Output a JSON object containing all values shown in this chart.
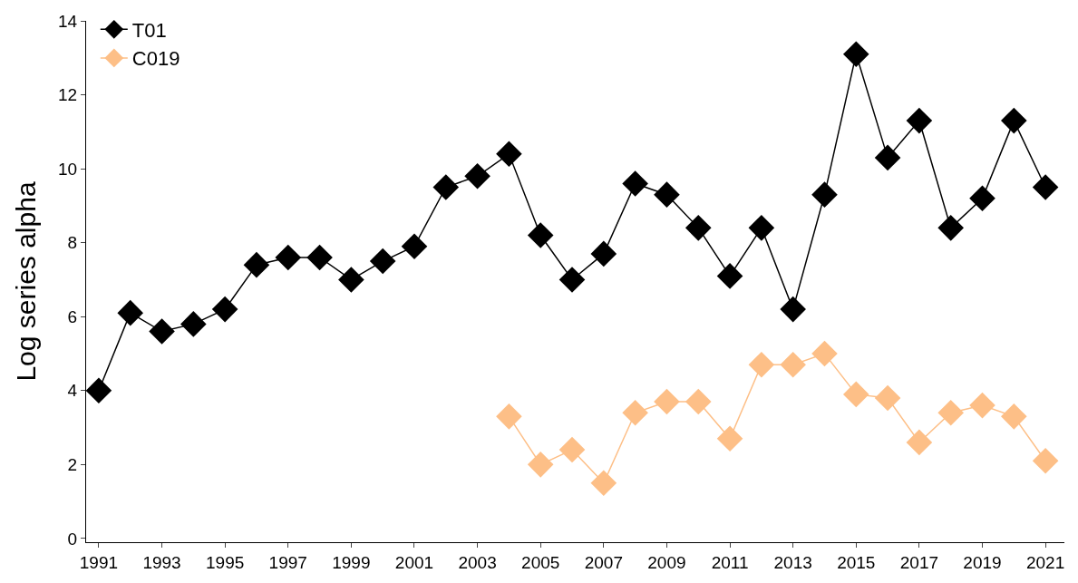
{
  "chart_data": {
    "type": "line",
    "ylabel": "Log series alpha",
    "x": [
      1991,
      1992,
      1993,
      1994,
      1995,
      1996,
      1997,
      1998,
      1999,
      2000,
      2001,
      2002,
      2003,
      2004,
      2005,
      2006,
      2007,
      2008,
      2009,
      2010,
      2011,
      2012,
      2013,
      2014,
      2015,
      2016,
      2017,
      2018,
      2019,
      2020,
      2021
    ],
    "series": [
      {
        "name": "T01",
        "color": "#000000",
        "values": [
          4.0,
          6.1,
          5.6,
          5.8,
          6.2,
          7.4,
          7.6,
          7.6,
          7.0,
          7.5,
          7.9,
          9.5,
          9.8,
          10.4,
          8.2,
          7.0,
          7.7,
          9.6,
          9.3,
          8.4,
          7.1,
          8.4,
          6.2,
          9.3,
          13.1,
          10.3,
          11.3,
          8.4,
          9.2,
          11.3,
          9.5
        ]
      },
      {
        "name": "C019",
        "color": "#fdbf87",
        "x": [
          2004,
          2005,
          2006,
          2007,
          2008,
          2009,
          2010,
          2011,
          2012,
          2013,
          2014,
          2015,
          2016,
          2017,
          2018,
          2019,
          2020,
          2021
        ],
        "values": [
          3.3,
          2.0,
          2.4,
          1.5,
          3.4,
          3.7,
          3.7,
          2.7,
          4.7,
          4.7,
          5.0,
          3.9,
          3.8,
          2.6,
          3.4,
          3.6,
          3.3,
          2.1
        ]
      }
    ],
    "xlim": [
      1990.6,
      2021.6
    ],
    "xticks": [
      1991,
      1993,
      1995,
      1997,
      1999,
      2001,
      2003,
      2005,
      2007,
      2009,
      2011,
      2013,
      2015,
      2017,
      2019,
      2021
    ],
    "ylim": [
      -0.1,
      14
    ],
    "yticks": [
      0,
      2,
      4,
      6,
      8,
      10,
      12,
      14
    ],
    "legend": "top left",
    "marker": "diamond",
    "line_style": "solid"
  }
}
